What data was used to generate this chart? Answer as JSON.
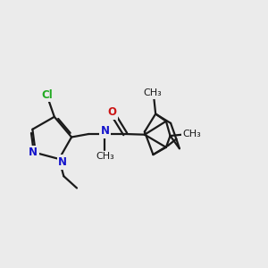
{
  "bg_color": "#ebebeb",
  "bond_color": "#1a1a1a",
  "bond_width": 1.6,
  "atom_colors": {
    "C": "#1a1a1a",
    "N": "#1414cc",
    "O": "#cc1414",
    "Cl": "#22aa22"
  },
  "font_size": 8.5,
  "xlim": [
    0.0,
    8.5
  ],
  "ylim": [
    1.2,
    6.5
  ]
}
